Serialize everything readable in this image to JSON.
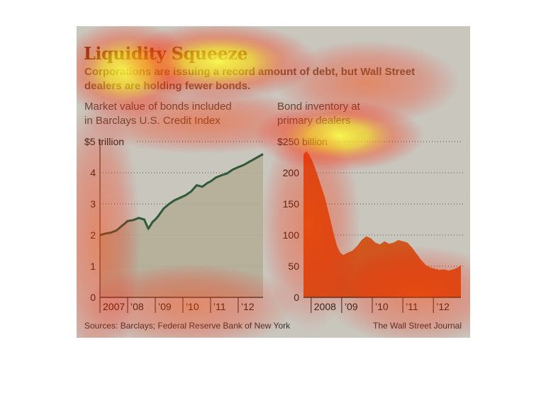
{
  "title": "Liquidity Squeeze",
  "subtitle": "Corporations are issuing a record amount of debt, but Wall Street dealers are holding fewer bonds.",
  "source": "Sources: Barclays; Federal Reserve Bank of New York",
  "credit": "The Wall Street Journal",
  "colors": {
    "panel_bg": "#c9c6bd",
    "area_left": "#b4ad96",
    "line_left": "#2e5a3a",
    "area_right": "#d0561e",
    "title": "#7a3a1a"
  },
  "chart_data": [
    {
      "type": "area",
      "title": "Market value of bonds included\nin Barclays U.S. Credit Index",
      "y_unit_label": "$5 trillion",
      "ylim": [
        0,
        5
      ],
      "y_ticks": [
        0,
        1,
        2,
        3,
        4
      ],
      "x_labels": [
        "2007",
        "’08",
        "’09",
        "’10",
        "’11",
        "’12"
      ],
      "xlim": [
        2007.0,
        2012.9
      ],
      "grid": true,
      "series": [
        {
          "x": [
            2007.0,
            2007.2,
            2007.4,
            2007.6,
            2007.8,
            2008.0,
            2008.2,
            2008.4,
            2008.6,
            2008.75,
            2008.9,
            2009.0,
            2009.1,
            2009.3,
            2009.5,
            2009.7,
            2009.9,
            2010.1,
            2010.3,
            2010.5,
            2010.7,
            2010.9,
            2011.0,
            2011.2,
            2011.4,
            2011.6,
            2011.8,
            2012.0,
            2012.2,
            2012.4,
            2012.6,
            2012.8,
            2012.9
          ],
          "values": [
            2.0,
            2.05,
            2.08,
            2.15,
            2.3,
            2.45,
            2.48,
            2.55,
            2.5,
            2.2,
            2.42,
            2.5,
            2.6,
            2.85,
            3.0,
            3.12,
            3.2,
            3.28,
            3.4,
            3.6,
            3.55,
            3.68,
            3.72,
            3.85,
            3.92,
            3.98,
            4.1,
            4.18,
            4.25,
            4.35,
            4.45,
            4.55,
            4.6
          ]
        }
      ]
    },
    {
      "type": "area",
      "title": "Bond inventory at\nprimary dealers",
      "y_unit_label": "$250 billion",
      "ylim": [
        0,
        250
      ],
      "y_ticks": [
        0,
        50,
        100,
        150,
        200
      ],
      "x_labels": [
        "2008",
        "’09",
        "’10",
        "’11",
        "’12"
      ],
      "xlim": [
        2007.75,
        2012.9
      ],
      "grid": true,
      "series": [
        {
          "x": [
            2007.75,
            2007.85,
            2007.95,
            2008.05,
            2008.15,
            2008.25,
            2008.35,
            2008.45,
            2008.55,
            2008.65,
            2008.75,
            2008.85,
            2008.95,
            2009.05,
            2009.2,
            2009.35,
            2009.5,
            2009.65,
            2009.8,
            2009.95,
            2010.1,
            2010.25,
            2010.4,
            2010.55,
            2010.7,
            2010.85,
            2011.0,
            2011.15,
            2011.3,
            2011.45,
            2011.6,
            2011.75,
            2011.9,
            2012.05,
            2012.2,
            2012.35,
            2012.5,
            2012.65,
            2012.8,
            2012.9
          ],
          "values": [
            230,
            235,
            228,
            218,
            205,
            190,
            175,
            160,
            140,
            120,
            100,
            82,
            72,
            68,
            72,
            75,
            82,
            92,
            98,
            95,
            88,
            85,
            90,
            86,
            88,
            92,
            90,
            88,
            80,
            70,
            60,
            52,
            48,
            46,
            44,
            45,
            43,
            45,
            48,
            52
          ]
        }
      ]
    }
  ]
}
